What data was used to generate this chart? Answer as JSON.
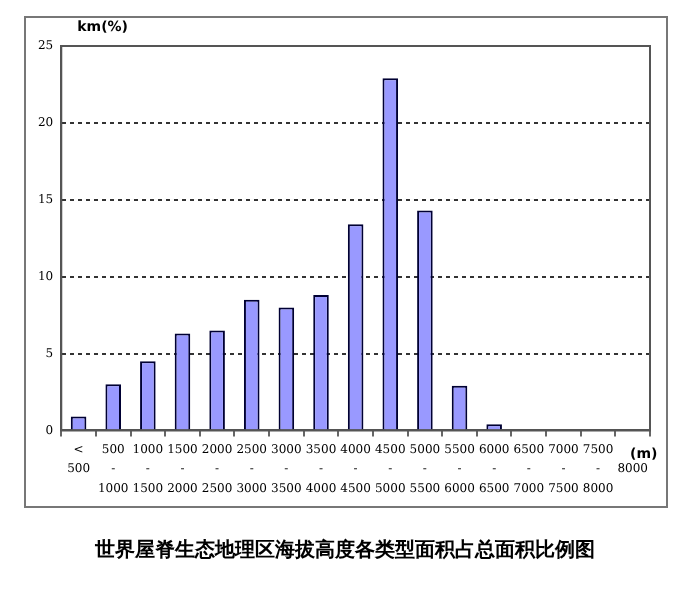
{
  "chart_data": {
    "type": "bar",
    "title": "世界屋脊生态地理区海拔高度各类型面积占总面积比例图",
    "ylabel": "km(%)",
    "xlabel": "(m)",
    "categories": [
      "<\n500",
      "500\n-\n1000",
      "1000\n-\n1500",
      "1500\n-\n2000",
      "2000\n-\n2500",
      "2500\n-\n3000",
      "3000\n-\n3500",
      "3500\n-\n4000",
      "4000\n-\n4500",
      "4500\n-\n5000",
      "5000\n-\n5500",
      "5500\n-\n6000",
      "6000\n-\n6500",
      "6500\n-\n7000",
      "7000\n-\n7500",
      "7500\n-\n8000",
      "8000"
    ],
    "values": [
      0.9,
      3.0,
      4.5,
      6.3,
      6.5,
      8.5,
      8.0,
      8.8,
      13.4,
      22.9,
      14.3,
      2.9,
      0.4,
      0,
      0,
      0,
      0
    ],
    "color": "#9999ff",
    "ylim": [
      0,
      25
    ],
    "yticks": [
      0,
      5,
      10,
      15,
      20,
      25
    ],
    "grid": "y",
    "legend": false
  }
}
